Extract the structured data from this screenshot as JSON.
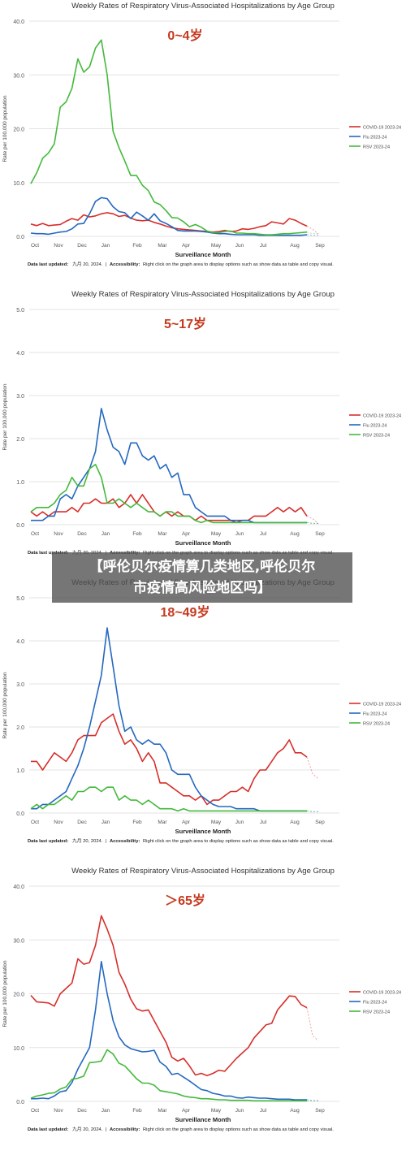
{
  "chart_data": [
    {
      "type": "line",
      "title": "Weekly Rates of Respiratory Virus-Associated Hospitalizations by Age Group",
      "subtitle": "0~4岁",
      "xlabel": "Surveillance Month",
      "ylabel": "Rate per 100,000 population",
      "x_ticks": [
        "Oct",
        "Nov",
        "Dec",
        "Jan",
        "Feb",
        "Mar",
        "Apr",
        "May",
        "Jun",
        "Jul",
        "Aug",
        "Sep"
      ],
      "y_ticks": [
        "0.0",
        "10.0",
        "20.0",
        "30.0",
        "40.0"
      ],
      "ylim": [
        0,
        40
      ],
      "grid": true,
      "legend_position": "right",
      "footer_label": "Data last updated:",
      "footer_date": "九月 20, 2024.",
      "footer_sep": "|",
      "footer_access_label": "Accessibility:",
      "footer_text": "Right click on the graph area to display options such as show data as table and copy visual.",
      "series": [
        {
          "name": "COVID-19 2023-24",
          "color": "#d62f2a",
          "values": [
            2.3,
            2.0,
            2.4,
            2.0,
            2.1,
            2.2,
            2.8,
            3.3,
            3.0,
            4.0,
            3.6,
            3.8,
            4.2,
            4.4,
            4.2,
            3.7,
            3.9,
            3.4,
            3.0,
            2.9,
            3.0,
            2.6,
            2.3,
            1.9,
            1.6,
            1.4,
            1.3,
            1.2,
            1.1,
            1.0,
            0.9,
            0.8,
            0.9,
            1.1,
            0.9,
            1.0,
            1.4,
            1.3,
            1.5,
            1.8,
            2.0,
            2.7,
            2.5,
            2.3,
            3.3,
            3.0,
            2.4,
            1.9
          ]
        },
        {
          "name": "Flu 2023-24",
          "color": "#2468c0",
          "values": [
            0.6,
            0.5,
            0.5,
            0.4,
            0.6,
            0.8,
            0.9,
            1.4,
            2.3,
            2.4,
            4.2,
            6.5,
            7.2,
            7.0,
            5.5,
            4.6,
            4.4,
            3.3,
            4.5,
            3.8,
            3.0,
            4.2,
            2.9,
            2.4,
            1.8,
            1.1,
            1.0,
            1.0,
            1.0,
            0.9,
            0.8,
            0.6,
            0.5,
            0.5,
            0.4,
            0.3,
            0.3,
            0.3,
            0.3,
            0.2,
            0.2,
            0.2,
            0.2,
            0.2,
            0.2,
            0.2,
            0.2,
            0.3
          ]
        },
        {
          "name": "RSV 2023-24",
          "color": "#44b93b",
          "values": [
            9.8,
            11.8,
            14.5,
            15.5,
            17.2,
            24.0,
            25.0,
            27.5,
            33.0,
            30.5,
            31.5,
            35.0,
            36.5,
            30.0,
            19.5,
            16.5,
            14.0,
            11.3,
            11.3,
            9.5,
            8.5,
            6.4,
            5.9,
            4.8,
            3.5,
            3.4,
            2.7,
            1.8,
            2.2,
            1.7,
            1.0,
            0.7,
            0.7,
            0.9,
            1.0,
            0.6,
            0.6,
            0.5,
            0.5,
            0.4,
            0.3,
            0.3,
            0.4,
            0.5,
            0.5,
            0.6,
            0.7,
            0.8
          ]
        }
      ]
    },
    {
      "type": "line",
      "title": "Weekly Rates of Respiratory Virus-Associated Hospitalizations by Age Group",
      "subtitle": "5~17岁",
      "xlabel": "Surveillance Month",
      "ylabel": "Rate per 100,000 population",
      "x_ticks": [
        "Oct",
        "Nov",
        "Dec",
        "Jan",
        "Feb",
        "Mar",
        "Apr",
        "May",
        "Jun",
        "Jul",
        "Aug",
        "Sep"
      ],
      "y_ticks": [
        "0.0",
        "1.0",
        "2.0",
        "3.0",
        "4.0",
        "5.0"
      ],
      "ylim": [
        0,
        5
      ],
      "grid": true,
      "legend_position": "right",
      "footer_label": "Data last updated:",
      "footer_date": "九月 20, 2024.",
      "footer_sep": "|",
      "footer_access_label": "Accessibility:",
      "footer_text": "Right click on the graph area to display options such as show data as table and copy visual.",
      "series": [
        {
          "name": "COVID-19 2023-24",
          "color": "#d62f2a",
          "values": [
            0.3,
            0.2,
            0.3,
            0.2,
            0.3,
            0.3,
            0.3,
            0.4,
            0.3,
            0.5,
            0.5,
            0.6,
            0.5,
            0.5,
            0.6,
            0.4,
            0.5,
            0.7,
            0.5,
            0.7,
            0.5,
            0.3,
            0.2,
            0.3,
            0.2,
            0.3,
            0.2,
            0.2,
            0.1,
            0.2,
            0.1,
            0.1,
            0.1,
            0.1,
            0.1,
            0.05,
            0.1,
            0.1,
            0.2,
            0.2,
            0.2,
            0.3,
            0.4,
            0.3,
            0.4,
            0.3,
            0.4,
            0.2
          ]
        },
        {
          "name": "Flu 2023-24",
          "color": "#2468c0",
          "values": [
            0.1,
            0.1,
            0.1,
            0.2,
            0.2,
            0.6,
            0.7,
            0.6,
            0.9,
            1.1,
            1.3,
            1.7,
            2.7,
            2.2,
            1.8,
            1.7,
            1.4,
            1.9,
            1.9,
            1.6,
            1.5,
            1.6,
            1.3,
            1.4,
            1.1,
            1.2,
            0.7,
            0.7,
            0.4,
            0.3,
            0.2,
            0.2,
            0.2,
            0.2,
            0.1,
            0.1,
            0.1,
            0.1,
            0.05,
            0.05,
            0.05,
            0.05,
            0.05,
            0.05,
            0.05,
            0.05,
            0.05,
            0.05
          ]
        },
        {
          "name": "RSV 2023-24",
          "color": "#44b93b",
          "values": [
            0.3,
            0.4,
            0.4,
            0.4,
            0.5,
            0.7,
            0.8,
            1.1,
            0.9,
            0.9,
            1.3,
            1.4,
            1.1,
            0.5,
            0.5,
            0.6,
            0.5,
            0.4,
            0.5,
            0.4,
            0.3,
            0.3,
            0.2,
            0.3,
            0.3,
            0.2,
            0.2,
            0.2,
            0.1,
            0.05,
            0.1,
            0.05,
            0.05,
            0.05,
            0.05,
            0.05,
            0.05,
            0.05,
            0.05,
            0.05,
            0.05,
            0.05,
            0.05,
            0.05,
            0.05,
            0.05,
            0.05,
            0.05
          ]
        }
      ]
    },
    {
      "type": "line",
      "title": "Weekly Rates of Respiratory Virus-Associated Hospitalizations by Age Group",
      "subtitle": "18~49岁",
      "xlabel": "Surveillance Month",
      "ylabel": "Rate per 100,000 population",
      "x_ticks": [
        "Oct",
        "Nov",
        "Dec",
        "Jan",
        "Feb",
        "Mar",
        "Apr",
        "May",
        "Jun",
        "Jul",
        "Aug",
        "Sep"
      ],
      "y_ticks": [
        "0.0",
        "1.0",
        "2.0",
        "3.0",
        "4.0",
        "5.0"
      ],
      "ylim": [
        0,
        5
      ],
      "grid": true,
      "legend_position": "right",
      "footer_label": "Data last updated:",
      "footer_date": "九月 20, 2024.",
      "footer_sep": "|",
      "footer_access_label": "Accessibility:",
      "footer_text": "Right click on the graph area to display options such as show data as table and copy visual.",
      "series": [
        {
          "name": "COVID-19 2023-24",
          "color": "#d62f2a",
          "values": [
            1.2,
            1.2,
            1.0,
            1.2,
            1.4,
            1.3,
            1.2,
            1.4,
            1.7,
            1.8,
            1.8,
            1.8,
            2.1,
            2.2,
            2.3,
            1.9,
            1.6,
            1.7,
            1.5,
            1.2,
            1.4,
            1.2,
            0.7,
            0.7,
            0.6,
            0.5,
            0.4,
            0.4,
            0.3,
            0.4,
            0.2,
            0.3,
            0.3,
            0.4,
            0.5,
            0.5,
            0.6,
            0.5,
            0.8,
            1.0,
            1.0,
            1.2,
            1.4,
            1.5,
            1.7,
            1.4,
            1.4,
            1.3
          ]
        },
        {
          "name": "Flu 2023-24",
          "color": "#2468c0",
          "values": [
            0.1,
            0.1,
            0.2,
            0.2,
            0.3,
            0.4,
            0.5,
            0.8,
            1.1,
            1.5,
            2.0,
            2.6,
            3.2,
            4.3,
            3.4,
            2.5,
            1.9,
            2.0,
            1.7,
            1.6,
            1.7,
            1.6,
            1.6,
            1.4,
            1.0,
            0.9,
            0.9,
            0.9,
            0.6,
            0.4,
            0.3,
            0.2,
            0.15,
            0.15,
            0.15,
            0.1,
            0.1,
            0.1,
            0.1,
            0.05,
            0.05,
            0.05,
            0.05,
            0.05,
            0.05,
            0.05,
            0.05,
            0.05
          ]
        },
        {
          "name": "RSV 2023-24",
          "color": "#44b93b",
          "values": [
            0.1,
            0.2,
            0.1,
            0.2,
            0.2,
            0.3,
            0.4,
            0.3,
            0.5,
            0.5,
            0.6,
            0.6,
            0.5,
            0.6,
            0.6,
            0.3,
            0.4,
            0.3,
            0.3,
            0.2,
            0.3,
            0.2,
            0.1,
            0.1,
            0.1,
            0.05,
            0.1,
            0.05,
            0.05,
            0.05,
            0.05,
            0.05,
            0.05,
            0.05,
            0.05,
            0.05,
            0.05,
            0.05,
            0.05,
            0.05,
            0.05,
            0.05,
            0.05,
            0.05,
            0.05,
            0.05,
            0.05,
            0.05
          ]
        }
      ]
    },
    {
      "type": "line",
      "title": "Weekly Rates of Respiratory Virus-Associated Hospitalizations by Age Group",
      "subtitle": "＞65岁",
      "xlabel": "Surveillance Month",
      "ylabel": "Rate per 100,000 population",
      "x_ticks": [
        "Oct",
        "Nov",
        "Dec",
        "Jan",
        "Feb",
        "Mar",
        "Apr",
        "May",
        "Jun",
        "Jul",
        "Aug",
        "Sep"
      ],
      "y_ticks": [
        "0.0",
        "10.0",
        "20.0",
        "30.0",
        "40.0"
      ],
      "ylim": [
        0,
        40
      ],
      "grid": true,
      "legend_position": "right",
      "footer_label": "Data last updated:",
      "footer_date": "九月 20, 2024.",
      "footer_sep": "|",
      "footer_access_label": "Accessibility:",
      "footer_text": "Right click on the graph area to display options such as show data as table and copy visual.",
      "series": [
        {
          "name": "COVID-19 2023-24",
          "color": "#d62f2a",
          "values": [
            19.7,
            18.5,
            18.4,
            18.3,
            17.7,
            20.0,
            21.0,
            22.0,
            26.5,
            25.5,
            25.8,
            29.0,
            34.5,
            32.0,
            29.0,
            24.0,
            21.8,
            19.0,
            17.2,
            16.8,
            17.0,
            15.0,
            13.0,
            11.0,
            8.2,
            7.5,
            8.0,
            6.6,
            4.9,
            5.2,
            4.8,
            5.2,
            5.8,
            5.6,
            6.8,
            8.0,
            9.0,
            10.0,
            11.8,
            13.0,
            14.2,
            14.5,
            17.0,
            18.3,
            19.6,
            19.5,
            18.0,
            17.4
          ]
        },
        {
          "name": "Flu 2023-24",
          "color": "#2468c0",
          "values": [
            0.5,
            0.5,
            0.6,
            0.5,
            1.0,
            1.8,
            2.0,
            3.5,
            6.0,
            8.0,
            10.0,
            17.0,
            26.0,
            20.0,
            15.0,
            12.0,
            10.5,
            9.8,
            9.5,
            9.2,
            9.3,
            9.5,
            7.3,
            6.5,
            5.0,
            5.2,
            4.5,
            3.8,
            3.0,
            2.2,
            2.0,
            1.5,
            1.3,
            1.0,
            1.0,
            0.7,
            0.6,
            0.8,
            0.7,
            0.6,
            0.6,
            0.5,
            0.4,
            0.4,
            0.4,
            0.3,
            0.3,
            0.3
          ]
        },
        {
          "name": "RSV 2023-24",
          "color": "#44b93b",
          "values": [
            0.6,
            1.0,
            1.2,
            1.5,
            1.6,
            2.3,
            2.7,
            4.1,
            4.3,
            4.7,
            7.2,
            7.3,
            7.5,
            9.6,
            8.8,
            7.1,
            6.6,
            5.4,
            4.2,
            3.4,
            3.4,
            3.0,
            2.0,
            1.8,
            1.6,
            1.4,
            1.0,
            0.8,
            0.7,
            0.5,
            0.5,
            0.4,
            0.3,
            0.3,
            0.2,
            0.2,
            0.2,
            0.2,
            0.1,
            0.1,
            0.1,
            0.1,
            0.1,
            0.1,
            0.1,
            0.1,
            0.1,
            0.1
          ]
        }
      ]
    }
  ],
  "banner": {
    "line1": "【呼伦贝尔疫情算几类地区,呼伦贝尔",
    "line2": "市疫情高风险地区吗】"
  }
}
